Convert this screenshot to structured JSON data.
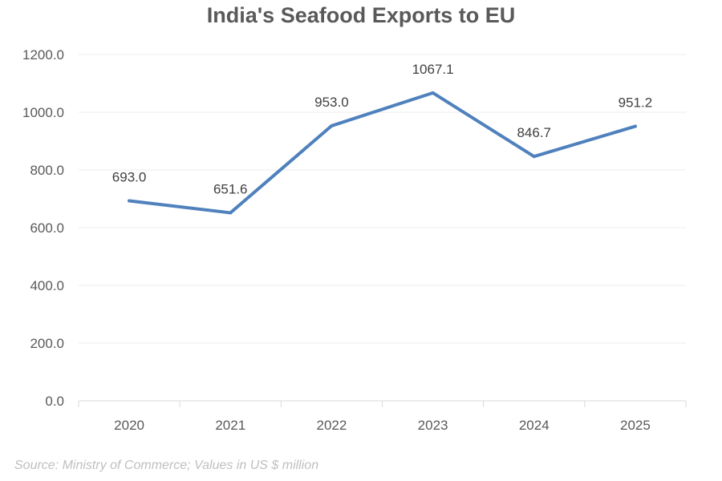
{
  "chart_data": {
    "type": "line",
    "title": "India's Seafood Exports to EU",
    "xlabel": "",
    "ylabel": "",
    "categories": [
      "2020",
      "2021",
      "2022",
      "2023",
      "2024",
      "2025"
    ],
    "series": [
      {
        "values": [
          693.0,
          651.6,
          953.0,
          1067.1,
          846.7,
          951.2
        ],
        "data_labels": [
          "693.0",
          "651.6",
          "953.0",
          "1067.1",
          "846.7",
          "951.2"
        ],
        "color": "#4f81bd"
      }
    ],
    "ylim": [
      0,
      1200
    ],
    "yticks": [
      0,
      200,
      400,
      600,
      800,
      1000,
      1200
    ],
    "ytick_labels": [
      "0.0",
      "200.0",
      "400.0",
      "600.0",
      "800.0",
      "1000.0",
      "1200.0"
    ],
    "grid": true,
    "legend": "none"
  },
  "source_note": "Source: Ministry of Commerce; Values in US $ million"
}
